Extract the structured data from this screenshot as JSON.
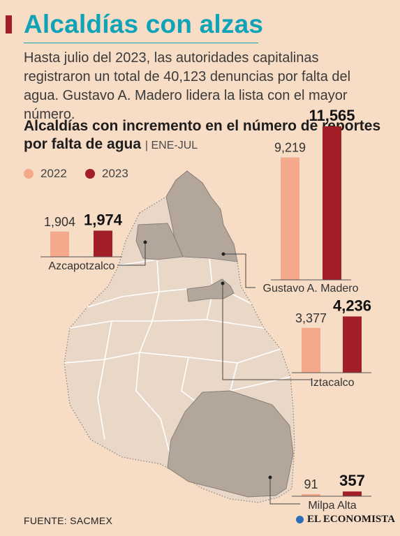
{
  "header": {
    "title": "Alcaldías con alzas",
    "intro": "Hasta julio del 2023, las autoridades capitalinas registraron un total de 40,123 denuncias por falta del agua. Gustavo A. Madero lidera la lista con el mayor número.",
    "subtitle": "Alcaldías con incremento en el número de reportes por falta de agua",
    "period": "ENE-JUL"
  },
  "footer": {
    "source": "FUENTE: SACMEX",
    "brand": "EL ECONOMISTA"
  },
  "colors": {
    "series_2022": "#f4a98a",
    "series_2023": "#a31f27",
    "title": "#0fa3b8",
    "background": "#f7dcc6",
    "map_region": "#e9d8c8",
    "map_highlight": "#b3a79b"
  },
  "chart_data": {
    "type": "bar",
    "series": [
      {
        "name": "2022"
      },
      {
        "name": "2023"
      }
    ],
    "groups": [
      {
        "category": "Azcapotzalco",
        "values": [
          1904,
          1974
        ],
        "labels": [
          "1,904",
          "1,974"
        ]
      },
      {
        "category": "Gustavo A. Madero",
        "values": [
          9219,
          11565
        ],
        "labels": [
          "9,219",
          "11,565"
        ]
      },
      {
        "category": "Iztacalco",
        "values": [
          3377,
          4236
        ],
        "labels": [
          "3,377",
          "4,236"
        ]
      },
      {
        "category": "Milpa Alta",
        "values": [
          91,
          357
        ],
        "labels": [
          "91",
          "357"
        ]
      }
    ],
    "highlighted_regions": [
      "Azcapotzalco",
      "Gustavo A. Madero",
      "Iztacalco",
      "Milpa Alta"
    ]
  }
}
